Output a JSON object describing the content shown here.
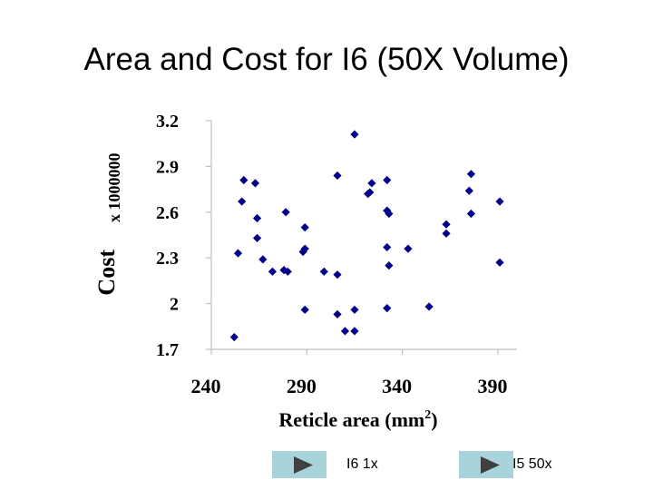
{
  "slide": {
    "title": "Area and Cost for I6 (50X Volume)"
  },
  "nav": {
    "link1_label": "I6 1x",
    "link2_label": "I5 50x"
  },
  "colors": {
    "marker": "#00008b",
    "axis": "#c0c0c0",
    "button": "#a9d3da",
    "arrow": "#404040"
  },
  "chart_data": {
    "type": "scatter",
    "xlabel": "Reticle area (mm",
    "xlabel_superscript": "2",
    "xlabel_suffix": ")",
    "ylabel": "Cost",
    "ylabel_multiplier": "x 1000000",
    "xticks": [
      "240",
      "290",
      "340",
      "390"
    ],
    "yticks": [
      "3.2",
      "2.9",
      "2.6",
      "2.3",
      "2",
      "1.7"
    ],
    "xlim": [
      240,
      400
    ],
    "ylim": [
      1.7,
      3.2
    ],
    "grid": false,
    "marker": "diamond",
    "points": [
      [
        252,
        1.78
      ],
      [
        254,
        2.33
      ],
      [
        256,
        2.67
      ],
      [
        257,
        2.81
      ],
      [
        263,
        2.79
      ],
      [
        264,
        2.56
      ],
      [
        264,
        2.43
      ],
      [
        267,
        2.29
      ],
      [
        272,
        2.21
      ],
      [
        278,
        2.22
      ],
      [
        279,
        2.6
      ],
      [
        280,
        2.21
      ],
      [
        288,
        2.34
      ],
      [
        289,
        2.36
      ],
      [
        289,
        2.5
      ],
      [
        289,
        1.96
      ],
      [
        299,
        2.21
      ],
      [
        306,
        2.84
      ],
      [
        306,
        2.19
      ],
      [
        306,
        1.93
      ],
      [
        310,
        1.82
      ],
      [
        315,
        3.11
      ],
      [
        315,
        1.96
      ],
      [
        315,
        1.82
      ],
      [
        322,
        2.72
      ],
      [
        323,
        2.73
      ],
      [
        324,
        2.79
      ],
      [
        332,
        2.81
      ],
      [
        332,
        2.61
      ],
      [
        333,
        2.59
      ],
      [
        332,
        2.37
      ],
      [
        333,
        2.25
      ],
      [
        332,
        1.97
      ],
      [
        343,
        2.36
      ],
      [
        354,
        1.98
      ],
      [
        363,
        2.52
      ],
      [
        363,
        2.46
      ],
      [
        376,
        2.85
      ],
      [
        375,
        2.74
      ],
      [
        376,
        2.59
      ],
      [
        391,
        2.67
      ],
      [
        391,
        2.27
      ]
    ]
  }
}
